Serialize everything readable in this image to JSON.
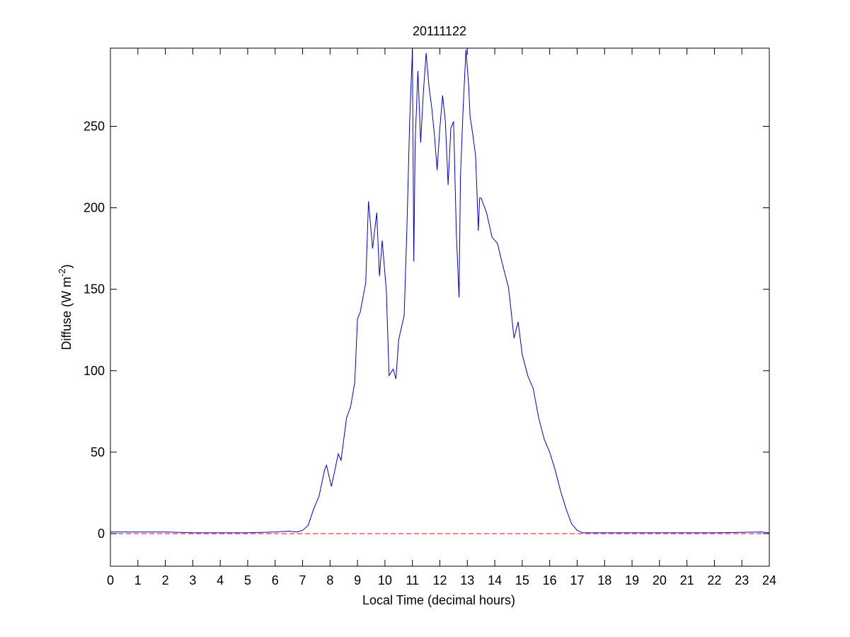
{
  "chart_data": {
    "type": "line",
    "title": "20111122",
    "xlabel": "Local Time (decimal hours)",
    "ylabel": {
      "text": "Diffuse (W m",
      "superscript": "-2",
      "suffix": ")"
    },
    "x": [
      0,
      1,
      2,
      3,
      4,
      5,
      6,
      6.5,
      6.8,
      7.0,
      7.2,
      7.4,
      7.6,
      7.8,
      7.87,
      8.05,
      8.3,
      8.4,
      8.6,
      8.75,
      8.9,
      9.0,
      9.1,
      9.3,
      9.4,
      9.55,
      9.7,
      9.8,
      9.9,
      10.05,
      10.15,
      10.3,
      10.4,
      10.5,
      10.7,
      10.8,
      10.9,
      11.0,
      11.05,
      11.1,
      11.2,
      11.3,
      11.4,
      11.5,
      11.6,
      11.7,
      11.8,
      11.9,
      12.0,
      12.1,
      12.2,
      12.3,
      12.4,
      12.5,
      12.6,
      12.7,
      12.75,
      12.85,
      12.95,
      13.05,
      13.1,
      13.2,
      13.3,
      13.35,
      13.4,
      13.45,
      13.5,
      13.7,
      13.9,
      14.1,
      14.3,
      14.5,
      14.6,
      14.7,
      14.85,
      15.0,
      15.2,
      15.4,
      15.6,
      15.8,
      16.0,
      16.2,
      16.4,
      16.6,
      16.8,
      17.0,
      17.2,
      18,
      20,
      22,
      23.7,
      24
    ],
    "series": [
      {
        "color": "#0000cc",
        "values": [
          1,
          1,
          1,
          0.5,
          0.5,
          0.5,
          1,
          1.5,
          1,
          2,
          5,
          15,
          23,
          39,
          42,
          29,
          49,
          45,
          71,
          78,
          93,
          132,
          136,
          154,
          204,
          175,
          197,
          158,
          180,
          149,
          97,
          101,
          95,
          119,
          134,
          188,
          253,
          297,
          167,
          240,
          284,
          240,
          271,
          295,
          275,
          262,
          245,
          223,
          249,
          269,
          253,
          214,
          249,
          253,
          184,
          145,
          219,
          262,
          297,
          275,
          256,
          245,
          232,
          210,
          186,
          206,
          206,
          197,
          182,
          178,
          164,
          151,
          136,
          120,
          130,
          110,
          97,
          89,
          71,
          58,
          50,
          39,
          26,
          15,
          6,
          2,
          0.5,
          0.5,
          0.5,
          0.5,
          1,
          0.5
        ]
      }
    ],
    "reference_line": {
      "value": 0,
      "color": "#ff0000",
      "style": "dashed"
    },
    "xlim": [
      0,
      24
    ],
    "ylim": [
      -20,
      298
    ],
    "xticks": [
      0,
      1,
      2,
      3,
      4,
      5,
      6,
      7,
      8,
      9,
      10,
      11,
      12,
      13,
      14,
      15,
      16,
      17,
      18,
      19,
      20,
      21,
      22,
      23,
      24
    ],
    "yticks": [
      0,
      50,
      100,
      150,
      200,
      250
    ],
    "grid": false
  }
}
